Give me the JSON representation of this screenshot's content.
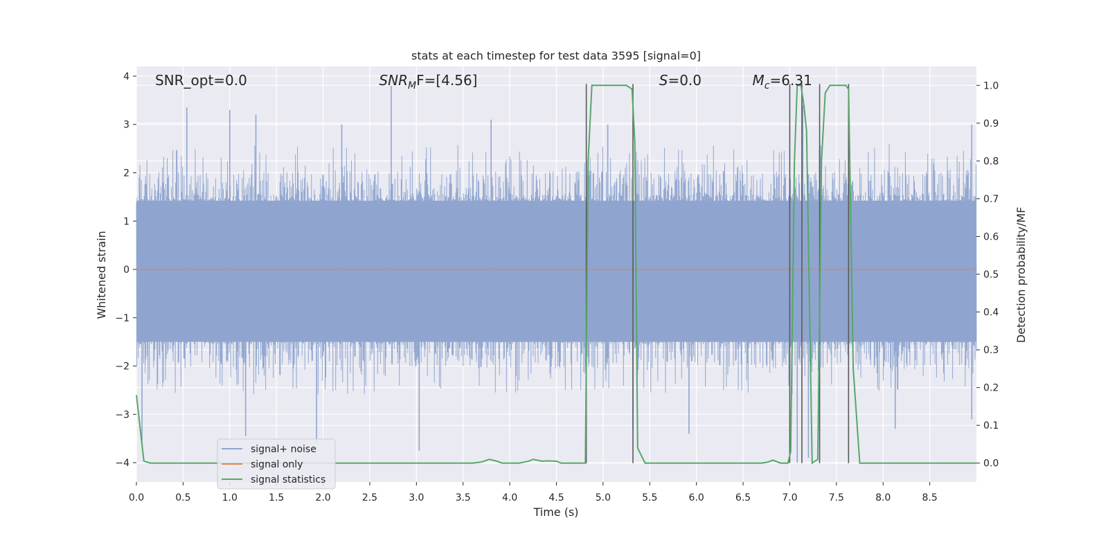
{
  "chart_data": {
    "type": "line",
    "title": "stats at each timestep for test data 3595 [signal=0]",
    "xlabel": "Time (s)",
    "ylabel_left": "Whitened strain",
    "ylabel_right": "Detection probability/MF",
    "xlim": [
      0.0,
      9.0
    ],
    "ylim_left": [
      -4.4,
      4.2
    ],
    "ylim_right": [
      -0.05,
      1.05
    ],
    "x_ticks": [
      "0.0",
      "0.5",
      "1.0",
      "1.5",
      "2.0",
      "2.5",
      "3.0",
      "3.5",
      "4.0",
      "4.5",
      "5.0",
      "5.5",
      "6.0",
      "6.5",
      "7.0",
      "7.5",
      "8.0",
      "8.5"
    ],
    "x_tick_values": [
      0.0,
      0.5,
      1.0,
      1.5,
      2.0,
      2.5,
      3.0,
      3.5,
      4.0,
      4.5,
      5.0,
      5.5,
      6.0,
      6.5,
      7.0,
      7.5,
      8.0,
      8.5
    ],
    "y_left_ticks": [
      "−4",
      "−3",
      "−2",
      "−1",
      "0",
      "1",
      "2",
      "3",
      "4"
    ],
    "y_left_tick_values": [
      -4,
      -3,
      -2,
      -1,
      0,
      1,
      2,
      3,
      4
    ],
    "y_right_ticks": [
      "0.0",
      "0.1",
      "0.2",
      "0.3",
      "0.4",
      "0.5",
      "0.6",
      "0.7",
      "0.8",
      "0.9",
      "1.0"
    ],
    "y_right_tick_values": [
      0.0,
      0.1,
      0.2,
      0.3,
      0.4,
      0.5,
      0.6,
      0.7,
      0.8,
      0.9,
      1.0
    ],
    "grid": true,
    "annotations": [
      {
        "key": "snr_opt",
        "text": "SNR_opt=0.0",
        "x": 0.2,
        "y_right": 1.01
      },
      {
        "key": "snr_mf",
        "text": "SNRMF=[4.56]",
        "x": 2.6,
        "y_right": 1.01
      },
      {
        "key": "s",
        "text": "S=0.0",
        "x": 5.6,
        "y_right": 1.01
      },
      {
        "key": "mc",
        "text": "Mc=6.31",
        "x": 6.6,
        "y_right": 1.01
      }
    ],
    "annotation_parts": {
      "snr_mf_base": "SNR",
      "snr_mf_sub": "M",
      "snr_mf_rest": "F=[4.56]",
      "s_base": "S",
      "s_rest": "=0.0",
      "mc_base": "M",
      "mc_sub": "c",
      "mc_rest": "=6.31"
    },
    "vertical_lines": [
      4.82,
      5.32,
      7.0,
      7.13,
      7.32,
      7.63
    ],
    "vertical_line_top_right": 1.0,
    "series": [
      {
        "name": "signal+ noise",
        "color": "#8fa5cf",
        "axis": "left",
        "description_values": "noisy whitened strain, band mostly within [-1.6, 1.5] with spikes up to 3.8 and down to -4.0",
        "spike_peaks": [
          {
            "x": 0.54,
            "y": 3.35
          },
          {
            "x": 1.0,
            "y": 3.3
          },
          {
            "x": 1.28,
            "y": 3.2
          },
          {
            "x": 2.73,
            "y": 3.8
          },
          {
            "x": 2.2,
            "y": 3.0
          },
          {
            "x": 3.8,
            "y": 3.1
          },
          {
            "x": 5.05,
            "y": 3.0
          },
          {
            "x": 7.14,
            "y": 3.4
          },
          {
            "x": 8.95,
            "y": 3.0
          },
          {
            "x": 0.06,
            "y": -3.55
          },
          {
            "x": 1.17,
            "y": -3.45
          },
          {
            "x": 1.93,
            "y": -3.6
          },
          {
            "x": 3.03,
            "y": -3.75
          },
          {
            "x": 5.32,
            "y": -3.3
          },
          {
            "x": 5.92,
            "y": -3.4
          },
          {
            "x": 7.08,
            "y": -4.0
          },
          {
            "x": 7.2,
            "y": -3.9
          },
          {
            "x": 8.13,
            "y": -3.3
          },
          {
            "x": 8.95,
            "y": -3.1
          }
        ]
      },
      {
        "name": "signal only",
        "color": "#dd8452",
        "axis": "left",
        "x": [
          0.0,
          9.0
        ],
        "y": [
          0.0,
          0.0
        ]
      },
      {
        "name": "signal statistics",
        "color": "#55a868",
        "axis": "right",
        "x": [
          0.0,
          0.08,
          0.15,
          3.6,
          3.7,
          3.78,
          3.85,
          3.92,
          4.1,
          4.2,
          4.25,
          4.35,
          4.4,
          4.5,
          4.55,
          4.81,
          4.84,
          4.88,
          5.25,
          5.31,
          5.34,
          5.37,
          5.45,
          6.7,
          6.77,
          6.82,
          6.9,
          6.98,
          7.01,
          7.05,
          7.08,
          7.12,
          7.15,
          7.18,
          7.24,
          7.3,
          7.34,
          7.38,
          7.43,
          7.6,
          7.63,
          7.68,
          7.75,
          9.0
        ],
        "y": [
          0.18,
          0.005,
          0.0,
          0.0,
          0.003,
          0.01,
          0.006,
          0.0,
          0.0,
          0.005,
          0.01,
          0.005,
          0.006,
          0.005,
          0.0,
          0.0,
          0.8,
          1.0,
          1.0,
          0.99,
          0.85,
          0.04,
          0.0,
          0.0,
          0.003,
          0.008,
          0.0,
          0.0,
          0.03,
          0.8,
          1.0,
          1.0,
          0.95,
          0.88,
          0.0,
          0.01,
          0.8,
          0.98,
          1.0,
          1.0,
          0.99,
          0.25,
          0.0,
          0.0
        ]
      }
    ],
    "legend": {
      "placement": "lower-left",
      "entries": [
        "signal+ noise",
        "signal only",
        "signal statistics"
      ]
    },
    "colors": {
      "background": "#eaeaf2",
      "grid": "#ffffff",
      "vline": "#595959"
    }
  }
}
